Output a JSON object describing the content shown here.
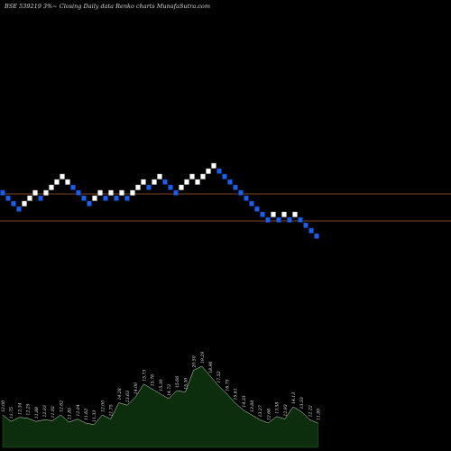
{
  "chart_data": {
    "type": "renko",
    "title": "BSE 539219 3%~  Closing Daily data  Renko  charts MunafaSutra.com",
    "colors": {
      "background": "#000000",
      "up_brick": "#ffffff",
      "down_brick": "#1f5fe6",
      "reference_line": "#a85a2e",
      "volume_fill": "#0d2e0d",
      "volume_line": "#c8c8c8"
    },
    "bricks": [
      {
        "i": 0,
        "level": 20,
        "dir": "down"
      },
      {
        "i": 1,
        "level": 19,
        "dir": "down"
      },
      {
        "i": 2,
        "level": 18,
        "dir": "down"
      },
      {
        "i": 3,
        "level": 17,
        "dir": "down"
      },
      {
        "i": 4,
        "level": 18,
        "dir": "up"
      },
      {
        "i": 5,
        "level": 19,
        "dir": "up"
      },
      {
        "i": 6,
        "level": 20,
        "dir": "up"
      },
      {
        "i": 7,
        "level": 19,
        "dir": "down"
      },
      {
        "i": 8,
        "level": 20,
        "dir": "up"
      },
      {
        "i": 9,
        "level": 21,
        "dir": "up"
      },
      {
        "i": 10,
        "level": 22,
        "dir": "up"
      },
      {
        "i": 11,
        "level": 23,
        "dir": "up"
      },
      {
        "i": 12,
        "level": 22,
        "dir": "up"
      },
      {
        "i": 13,
        "level": 21,
        "dir": "down"
      },
      {
        "i": 14,
        "level": 20,
        "dir": "down"
      },
      {
        "i": 15,
        "level": 19,
        "dir": "down"
      },
      {
        "i": 16,
        "level": 18,
        "dir": "down"
      },
      {
        "i": 17,
        "level": 19,
        "dir": "up"
      },
      {
        "i": 18,
        "level": 20,
        "dir": "up"
      },
      {
        "i": 19,
        "level": 19,
        "dir": "down"
      },
      {
        "i": 20,
        "level": 20,
        "dir": "up"
      },
      {
        "i": 21,
        "level": 19,
        "dir": "down"
      },
      {
        "i": 22,
        "level": 20,
        "dir": "up"
      },
      {
        "i": 23,
        "level": 19,
        "dir": "down"
      },
      {
        "i": 24,
        "level": 20,
        "dir": "up"
      },
      {
        "i": 25,
        "level": 21,
        "dir": "up"
      },
      {
        "i": 26,
        "level": 22,
        "dir": "up"
      },
      {
        "i": 27,
        "level": 21,
        "dir": "down"
      },
      {
        "i": 28,
        "level": 22,
        "dir": "up"
      },
      {
        "i": 29,
        "level": 23,
        "dir": "up"
      },
      {
        "i": 30,
        "level": 22,
        "dir": "down"
      },
      {
        "i": 31,
        "level": 21,
        "dir": "down"
      },
      {
        "i": 32,
        "level": 20,
        "dir": "down"
      },
      {
        "i": 33,
        "level": 21,
        "dir": "up"
      },
      {
        "i": 34,
        "level": 22,
        "dir": "up"
      },
      {
        "i": 35,
        "level": 23,
        "dir": "up"
      },
      {
        "i": 36,
        "level": 22,
        "dir": "up"
      },
      {
        "i": 37,
        "level": 23,
        "dir": "up"
      },
      {
        "i": 38,
        "level": 24,
        "dir": "up"
      },
      {
        "i": 39,
        "level": 25,
        "dir": "up"
      },
      {
        "i": 40,
        "level": 24,
        "dir": "down"
      },
      {
        "i": 41,
        "level": 23,
        "dir": "down"
      },
      {
        "i": 42,
        "level": 22,
        "dir": "down"
      },
      {
        "i": 43,
        "level": 21,
        "dir": "down"
      },
      {
        "i": 44,
        "level": 20,
        "dir": "down"
      },
      {
        "i": 45,
        "level": 19,
        "dir": "down"
      },
      {
        "i": 46,
        "level": 18,
        "dir": "down"
      },
      {
        "i": 47,
        "level": 17,
        "dir": "down"
      },
      {
        "i": 48,
        "level": 16,
        "dir": "down"
      },
      {
        "i": 49,
        "level": 15,
        "dir": "down"
      },
      {
        "i": 50,
        "level": 16,
        "dir": "up"
      },
      {
        "i": 51,
        "level": 15,
        "dir": "down"
      },
      {
        "i": 52,
        "level": 16,
        "dir": "up"
      },
      {
        "i": 53,
        "level": 15,
        "dir": "down"
      },
      {
        "i": 54,
        "level": 16,
        "dir": "up"
      },
      {
        "i": 55,
        "level": 15,
        "dir": "down"
      },
      {
        "i": 56,
        "level": 14,
        "dir": "down"
      },
      {
        "i": 57,
        "level": 13,
        "dir": "down"
      },
      {
        "i": 58,
        "level": 12,
        "dir": "down"
      }
    ],
    "reference_lines": [
      20,
      15
    ],
    "volume_labels": [
      {
        "i": 0,
        "text": "12.00",
        "v": 0.4
      },
      {
        "i": 2,
        "text": "11.75",
        "v": 0.32
      },
      {
        "i": 4,
        "text": "12.34",
        "v": 0.37
      },
      {
        "i": 6,
        "text": "12.25",
        "v": 0.36
      },
      {
        "i": 8,
        "text": "11.88",
        "v": 0.32
      },
      {
        "i": 10,
        "text": "12.03",
        "v": 0.34
      },
      {
        "i": 12,
        "text": "11.92",
        "v": 0.33
      },
      {
        "i": 14,
        "text": "12.62",
        "v": 0.4
      },
      {
        "i": 16,
        "text": "11.85",
        "v": 0.31
      },
      {
        "i": 18,
        "text": "12.04",
        "v": 0.35
      },
      {
        "i": 20,
        "text": "11.62",
        "v": 0.3
      },
      {
        "i": 22,
        "text": "11.33",
        "v": 0.28
      },
      {
        "i": 24,
        "text": "12.00",
        "v": 0.4
      },
      {
        "i": 26,
        "text": "11.75",
        "v": 0.35
      },
      {
        "i": 28,
        "text": "14.28",
        "v": 0.55
      },
      {
        "i": 30,
        "text": "13.63",
        "v": 0.52
      },
      {
        "i": 32,
        "text": "14.00",
        "v": 0.62
      },
      {
        "i": 34,
        "text": "15.73",
        "v": 0.78
      },
      {
        "i": 36,
        "text": "15.78",
        "v": 0.72
      },
      {
        "i": 38,
        "text": "15.30",
        "v": 0.66
      },
      {
        "i": 40,
        "text": "14.72",
        "v": 0.6
      },
      {
        "i": 42,
        "text": "15.66",
        "v": 0.7
      },
      {
        "i": 44,
        "text": "15.30",
        "v": 0.68
      },
      {
        "i": 46,
        "text": "20.50",
        "v": 0.95
      },
      {
        "i": 48,
        "text": "19.29",
        "v": 1.0
      },
      {
        "i": 50,
        "text": "18.96",
        "v": 0.88
      },
      {
        "i": 52,
        "text": "17.52",
        "v": 0.76
      },
      {
        "i": 54,
        "text": "16.75",
        "v": 0.66
      },
      {
        "i": 56,
        "text": "15.61",
        "v": 0.55
      },
      {
        "i": 58,
        "text": "14.33",
        "v": 0.46
      },
      {
        "i": 60,
        "text": "13.88",
        "v": 0.4
      },
      {
        "i": 62,
        "text": "13.27",
        "v": 0.34
      },
      {
        "i": 64,
        "text": "12.66",
        "v": 0.3
      },
      {
        "i": 66,
        "text": "13.58",
        "v": 0.38
      },
      {
        "i": 68,
        "text": "12.93",
        "v": 0.35
      },
      {
        "i": 70,
        "text": "14.13",
        "v": 0.5
      },
      {
        "i": 72,
        "text": "13.33",
        "v": 0.44
      },
      {
        "i": 74,
        "text": "12.22",
        "v": 0.34
      },
      {
        "i": 76,
        "text": "11.90",
        "v": 0.3
      }
    ]
  }
}
